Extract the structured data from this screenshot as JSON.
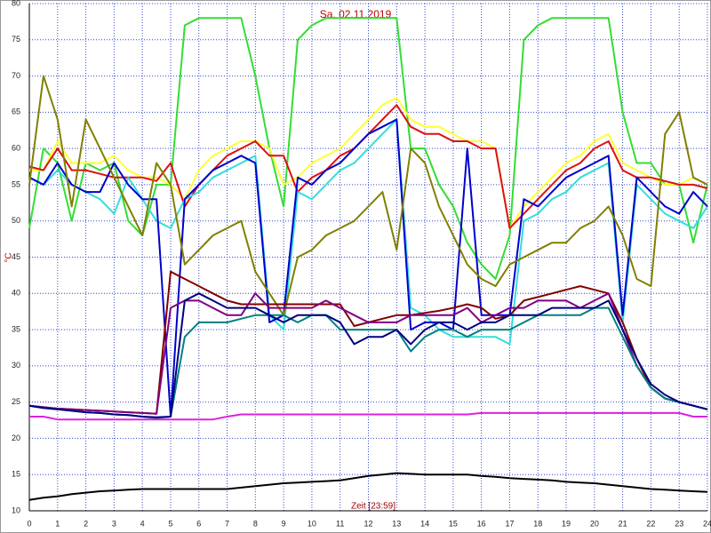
{
  "chart_data": {
    "type": "line",
    "title": "Sa, 02.11.2019",
    "xlabel": "Zeit [23:59]",
    "ylabel": "°C",
    "x": [
      0,
      0.5,
      1,
      1.5,
      2,
      2.5,
      3,
      3.5,
      4,
      4.5,
      5,
      5.5,
      6,
      6.5,
      7,
      7.5,
      8,
      8.5,
      9,
      9.5,
      10,
      10.5,
      11,
      11.5,
      12,
      12.5,
      13,
      13.5,
      14,
      14.5,
      15,
      15.5,
      16,
      16.5,
      17,
      17.5,
      18,
      18.5,
      19,
      19.5,
      20,
      20.5,
      21,
      21.5,
      22,
      22.5,
      23,
      23.5,
      24
    ],
    "xlim": [
      0,
      24
    ],
    "xticks": [
      0,
      1,
      2,
      3,
      4,
      5,
      6,
      7,
      8,
      9,
      10,
      11,
      12,
      13,
      14,
      15,
      16,
      17,
      18,
      19,
      20,
      21,
      22,
      23,
      24
    ],
    "ylim": [
      10,
      80
    ],
    "yticks": [
      10,
      15,
      20,
      25,
      30,
      35,
      40,
      45,
      50,
      55,
      60,
      65,
      70,
      75,
      80
    ],
    "grid": true,
    "series": [
      {
        "color": "#33dd33",
        "values": [
          49,
          60,
          58,
          50,
          58,
          57,
          58,
          50,
          48,
          55,
          55,
          77,
          78,
          78,
          78,
          78,
          70,
          60,
          52,
          75,
          77,
          78,
          78,
          78,
          78,
          78,
          78,
          60,
          60,
          55,
          52,
          47,
          44,
          42,
          48,
          75,
          77,
          78,
          78,
          78,
          78,
          78,
          65,
          58,
          58,
          55,
          55,
          47,
          55
        ]
      },
      {
        "color": "#ffff33",
        "values": [
          57,
          57,
          61,
          58,
          58,
          58,
          59,
          57,
          56,
          56,
          55,
          53,
          57,
          59,
          60,
          61,
          61,
          60,
          55,
          56,
          58,
          59,
          60,
          62,
          64,
          66,
          67,
          64,
          63,
          63,
          62,
          61,
          61,
          60,
          49,
          52,
          54,
          56,
          58,
          59,
          61,
          62,
          58,
          57,
          56,
          55,
          55,
          56,
          55
        ]
      },
      {
        "color": "#dd1111",
        "values": [
          57.5,
          57,
          60,
          57,
          57,
          56.5,
          56,
          56,
          56,
          55.5,
          58,
          52,
          55,
          57,
          59,
          60,
          61,
          59,
          59,
          54,
          56,
          57,
          59,
          60,
          62,
          64,
          66,
          63,
          62,
          62,
          61,
          61,
          60,
          60,
          49,
          51,
          53,
          55,
          57,
          58,
          60,
          61,
          57,
          56,
          56,
          55.5,
          55,
          55,
          54.5
        ]
      },
      {
        "color": "#33dddd",
        "values": [
          56,
          55,
          57,
          55,
          54,
          53,
          51,
          56,
          53,
          50,
          49,
          53,
          54,
          56,
          57,
          58,
          59,
          37,
          35,
          54,
          53,
          55,
          57,
          58,
          60,
          62,
          64,
          38,
          37,
          35,
          34,
          34,
          34,
          34,
          33,
          50,
          51,
          53,
          54,
          56,
          57,
          58,
          36,
          55,
          53,
          51,
          50,
          49,
          52
        ]
      },
      {
        "color": "#0000cc",
        "values": [
          56,
          55,
          58,
          55,
          54,
          54,
          58,
          55,
          53,
          53,
          23,
          53,
          55,
          57,
          58,
          59,
          58,
          36,
          37,
          56,
          55,
          57,
          58,
          60,
          62,
          63,
          64,
          35,
          36,
          36,
          35,
          60,
          37,
          37,
          37,
          53,
          52,
          54,
          56,
          57,
          58,
          59,
          37,
          56,
          54,
          52,
          51,
          54,
          52
        ]
      },
      {
        "color": "#808000",
        "values": [
          55,
          70,
          64,
          52,
          64,
          60,
          56,
          52,
          48,
          58,
          55,
          44,
          46,
          48,
          49,
          50,
          43,
          40,
          37,
          45,
          46,
          48,
          49,
          50,
          52,
          54,
          46,
          60,
          58,
          52,
          48,
          44,
          42,
          41,
          44,
          45,
          46,
          47,
          47,
          49,
          50,
          52,
          48,
          42,
          41,
          62,
          65,
          56,
          55
        ]
      },
      {
        "color": "#800000",
        "values": [
          24.5,
          24.3,
          24.1,
          24,
          23.9,
          23.8,
          23.7,
          23.6,
          23.5,
          23.4,
          43,
          42,
          41,
          40,
          39,
          38.5,
          38.5,
          38.5,
          38.5,
          38.5,
          38.5,
          38.5,
          38.5,
          35.5,
          36,
          36.5,
          37,
          37,
          37.3,
          37.6,
          38,
          38.5,
          38,
          36.5,
          37,
          39,
          39.5,
          40,
          40.5,
          41,
          40.5,
          40,
          36,
          31,
          27,
          25.5,
          25,
          24.5,
          24
        ]
      },
      {
        "color": "#800080",
        "values": [
          24.5,
          24.3,
          24.1,
          24,
          23.9,
          23.8,
          23.7,
          23.6,
          23.5,
          23.4,
          38,
          39,
          39,
          38,
          37,
          37,
          40,
          38,
          38,
          38,
          38,
          39,
          38,
          37,
          36,
          36,
          36,
          37,
          37,
          37,
          37,
          38,
          36,
          37,
          38,
          38,
          39,
          39,
          39,
          38,
          39,
          40,
          35,
          30,
          27,
          25.5,
          25,
          24.5,
          24
        ]
      },
      {
        "color": "#008080",
        "values": [
          24.5,
          24.2,
          24,
          23.8,
          23.6,
          23.5,
          23.3,
          23.2,
          23,
          22.8,
          23,
          34,
          36,
          36,
          36,
          36.5,
          37,
          37,
          37,
          36,
          37,
          37,
          35,
          35,
          35,
          35,
          35,
          32,
          34,
          35,
          35,
          34,
          35,
          35,
          35,
          36,
          37,
          37,
          37,
          37,
          38,
          38,
          34,
          30,
          27,
          25.5,
          25,
          24.5,
          24
        ]
      },
      {
        "color": "#000080",
        "values": [
          24.5,
          24.2,
          24,
          23.8,
          23.6,
          23.5,
          23.3,
          23.2,
          23,
          22.9,
          23,
          39,
          40,
          39,
          38,
          38,
          38,
          37,
          36,
          37,
          37,
          37,
          36,
          33,
          34,
          34,
          35,
          33,
          35,
          36,
          36,
          35,
          36,
          36,
          37,
          37,
          37,
          38,
          38,
          38,
          38,
          39,
          35,
          31,
          27.5,
          26,
          25,
          24.5,
          24
        ]
      },
      {
        "color": "#dd22dd",
        "values": [
          23,
          23,
          22.6,
          22.6,
          22.6,
          22.6,
          22.6,
          22.6,
          22.6,
          22.6,
          22.6,
          22.6,
          22.6,
          22.6,
          23,
          23.3,
          23.3,
          23.3,
          23.3,
          23.3,
          23.3,
          23.3,
          23.3,
          23.3,
          23.3,
          23.3,
          23.3,
          23.3,
          23.3,
          23.3,
          23.3,
          23.3,
          23.5,
          23.5,
          23.5,
          23.5,
          23.5,
          23.5,
          23.5,
          23.5,
          23.5,
          23.5,
          23.5,
          23.5,
          23.5,
          23.5,
          23.5,
          23,
          23
        ]
      },
      {
        "color": "#000000",
        "values": [
          11.5,
          11.8,
          12,
          12.3,
          12.5,
          12.7,
          12.8,
          12.9,
          13,
          13,
          13,
          13,
          13,
          13,
          13,
          13.2,
          13.4,
          13.6,
          13.8,
          13.9,
          14,
          14.1,
          14.2,
          14.5,
          14.8,
          15,
          15.2,
          15.1,
          15,
          15,
          15,
          15,
          14.8,
          14.7,
          14.5,
          14.4,
          14.3,
          14.2,
          14,
          13.9,
          13.8,
          13.6,
          13.4,
          13.2,
          13,
          12.9,
          12.8,
          12.7,
          12.6
        ]
      }
    ]
  }
}
